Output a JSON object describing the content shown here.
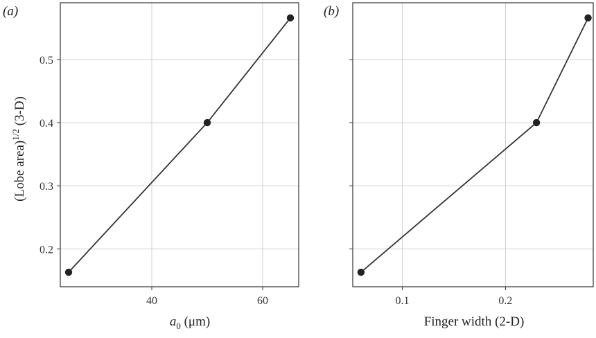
{
  "chart_data": [
    {
      "type": "line",
      "panel_label": "(a)",
      "xlabel_italic": "a",
      "xlabel_sub": "0",
      "xlabel_rest": " (μm)",
      "ylabel_main": "(Lobe area)",
      "ylabel_sup": "1/2",
      "ylabel_rest": " (3-D)",
      "x": [
        25,
        50,
        65
      ],
      "y": [
        0.163,
        0.4,
        0.566
      ],
      "xlim": [
        23.5,
        66.5
      ],
      "ylim": [
        0.14,
        0.59
      ],
      "xticks": [
        40,
        60
      ],
      "xtick_labels": [
        "40",
        "60"
      ],
      "yticks": [
        0.2,
        0.3,
        0.4,
        0.5
      ],
      "ytick_labels": [
        "0.2",
        "0.3",
        "0.4",
        "0.5"
      ],
      "grid": true
    },
    {
      "type": "line",
      "panel_label": "(b)",
      "xlabel": "Finger width (2-D)",
      "x": [
        0.06,
        0.23,
        0.28
      ],
      "y": [
        0.163,
        0.4,
        0.566
      ],
      "xlim": [
        0.052,
        0.285
      ],
      "ylim": [
        0.14,
        0.59
      ],
      "xticks": [
        0.1,
        0.2
      ],
      "xtick_labels": [
        "0.1",
        "0.2"
      ],
      "yticks": [
        0.2,
        0.3,
        0.4,
        0.5
      ],
      "grid": true
    }
  ]
}
